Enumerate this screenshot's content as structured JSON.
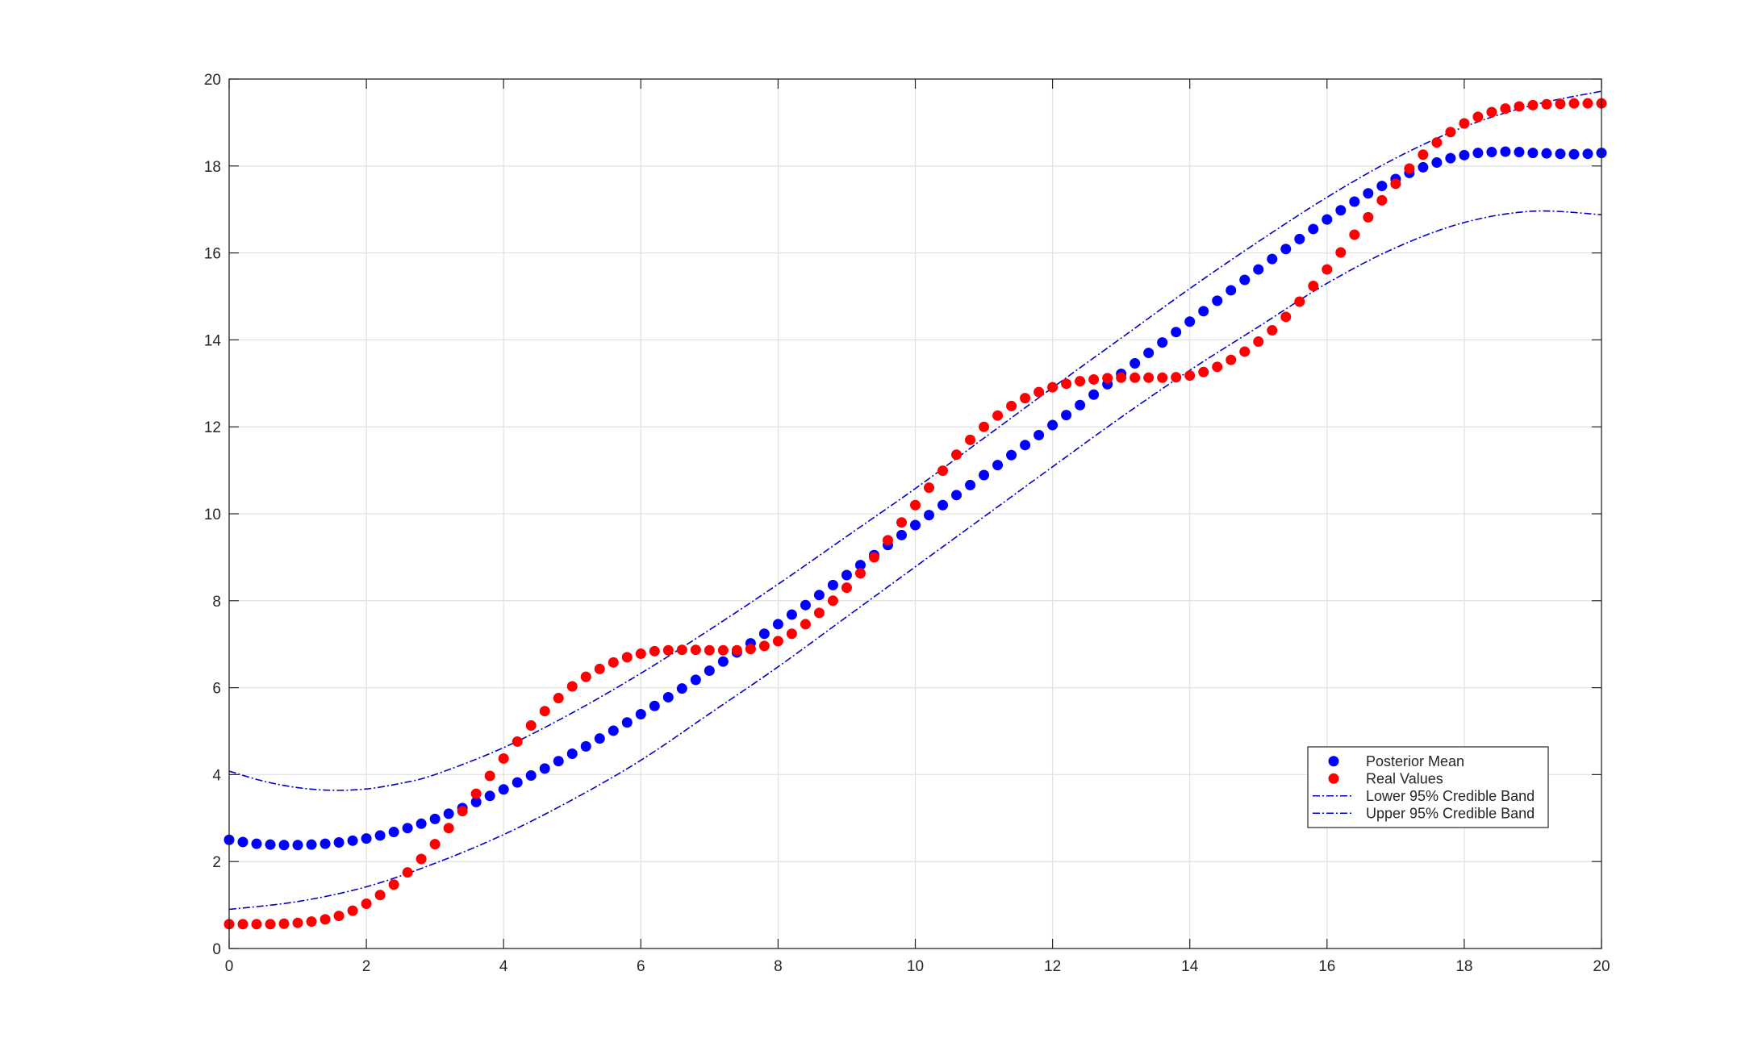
{
  "chart_data": {
    "type": "scatter",
    "title": "",
    "xlabel": "",
    "ylabel": "",
    "xlim": [
      0,
      20
    ],
    "ylim": [
      0,
      20
    ],
    "xticks": [
      0,
      2,
      4,
      6,
      8,
      10,
      12,
      14,
      16,
      18,
      20
    ],
    "yticks": [
      0,
      2,
      4,
      6,
      8,
      10,
      12,
      14,
      16,
      18,
      20
    ],
    "grid": true,
    "legend_position": "lower-right",
    "series": [
      {
        "name": "Posterior Mean",
        "kind": "markers",
        "color": "#0000ff",
        "x": [
          0,
          0.2,
          0.4,
          0.6,
          0.8,
          1.0,
          1.2,
          1.4,
          1.6,
          1.8,
          2.0,
          2.2,
          2.4,
          2.6,
          2.8,
          3.0,
          3.2,
          3.4,
          3.6,
          3.8,
          4.0,
          4.2,
          4.4,
          4.6,
          4.8,
          5.0,
          5.2,
          5.4,
          5.6,
          5.8,
          6.0,
          6.2,
          6.4,
          6.6,
          6.8,
          7.0,
          7.2,
          7.4,
          7.6,
          7.8,
          8.0,
          8.2,
          8.4,
          8.6,
          8.8,
          9.0,
          9.2,
          9.4,
          9.6,
          9.8,
          10.0,
          10.2,
          10.4,
          10.6,
          10.8,
          11.0,
          11.2,
          11.4,
          11.6,
          11.8,
          12.0,
          12.2,
          12.4,
          12.6,
          12.8,
          13.0,
          13.2,
          13.4,
          13.6,
          13.8,
          14.0,
          14.2,
          14.4,
          14.6,
          14.8,
          15.0,
          15.2,
          15.4,
          15.6,
          15.8,
          16.0,
          16.2,
          16.4,
          16.6,
          16.8,
          17.0,
          17.2,
          17.4,
          17.6,
          17.8,
          18.0,
          18.2,
          18.4,
          18.6,
          18.8,
          19.0,
          19.2,
          19.4,
          19.6,
          19.8,
          20.0
        ],
        "y": [
          2.5,
          2.45,
          2.41,
          2.39,
          2.38,
          2.38,
          2.39,
          2.41,
          2.44,
          2.48,
          2.53,
          2.6,
          2.68,
          2.77,
          2.87,
          2.98,
          3.1,
          3.23,
          3.37,
          3.51,
          3.66,
          3.82,
          3.98,
          4.14,
          4.31,
          4.48,
          4.65,
          4.83,
          5.01,
          5.2,
          5.39,
          5.58,
          5.78,
          5.98,
          6.18,
          6.39,
          6.6,
          6.81,
          7.02,
          7.24,
          7.46,
          7.68,
          7.9,
          8.13,
          8.36,
          8.59,
          8.82,
          9.05,
          9.28,
          9.51,
          9.74,
          9.97,
          10.2,
          10.43,
          10.66,
          10.89,
          11.12,
          11.35,
          11.58,
          11.81,
          12.04,
          12.27,
          12.5,
          12.74,
          12.98,
          13.22,
          13.46,
          13.7,
          13.94,
          14.18,
          14.42,
          14.66,
          14.9,
          15.14,
          15.38,
          15.62,
          15.86,
          16.09,
          16.32,
          16.55,
          16.77,
          16.98,
          17.18,
          17.37,
          17.54,
          17.7,
          17.84,
          17.97,
          18.08,
          18.18,
          18.25,
          18.3,
          18.32,
          18.33,
          18.32,
          18.3,
          18.29,
          18.28,
          18.27,
          18.28,
          18.3
        ]
      },
      {
        "name": "Real Values",
        "kind": "markers",
        "color": "#ff0000",
        "x": [
          0,
          0.2,
          0.4,
          0.6,
          0.8,
          1.0,
          1.2,
          1.4,
          1.6,
          1.8,
          2.0,
          2.2,
          2.4,
          2.6,
          2.8,
          3.0,
          3.2,
          3.4,
          3.6,
          3.8,
          4.0,
          4.2,
          4.4,
          4.6,
          4.8,
          5.0,
          5.2,
          5.4,
          5.6,
          5.8,
          6.0,
          6.2,
          6.4,
          6.6,
          6.8,
          7.0,
          7.2,
          7.4,
          7.6,
          7.8,
          8.0,
          8.2,
          8.4,
          8.6,
          8.8,
          9.0,
          9.2,
          9.4,
          9.6,
          9.8,
          10.0,
          10.2,
          10.4,
          10.6,
          10.8,
          11.0,
          11.2,
          11.4,
          11.6,
          11.8,
          12.0,
          12.2,
          12.4,
          12.6,
          12.8,
          13.0,
          13.2,
          13.4,
          13.6,
          13.8,
          14.0,
          14.2,
          14.4,
          14.6,
          14.8,
          15.0,
          15.2,
          15.4,
          15.6,
          15.8,
          16.0,
          16.2,
          16.4,
          16.6,
          16.8,
          17.0,
          17.2,
          17.4,
          17.6,
          17.8,
          18.0,
          18.2,
          18.4,
          18.6,
          18.8,
          19.0,
          19.2,
          19.4,
          19.6,
          19.8,
          20.0
        ],
        "y": [
          0.56,
          0.56,
          0.56,
          0.56,
          0.57,
          0.59,
          0.62,
          0.67,
          0.75,
          0.87,
          1.03,
          1.23,
          1.47,
          1.75,
          2.06,
          2.4,
          2.77,
          3.16,
          3.56,
          3.97,
          4.37,
          4.76,
          5.13,
          5.46,
          5.76,
          6.03,
          6.25,
          6.43,
          6.58,
          6.7,
          6.78,
          6.84,
          6.86,
          6.87,
          6.87,
          6.86,
          6.86,
          6.86,
          6.89,
          6.96,
          7.07,
          7.24,
          7.46,
          7.72,
          8.0,
          8.3,
          8.63,
          9.0,
          9.39,
          9.8,
          10.2,
          10.6,
          10.99,
          11.36,
          11.7,
          12.0,
          12.26,
          12.48,
          12.66,
          12.8,
          12.91,
          12.99,
          13.05,
          13.09,
          13.12,
          13.13,
          13.13,
          13.13,
          13.13,
          13.14,
          13.18,
          13.26,
          13.38,
          13.54,
          13.73,
          13.96,
          14.22,
          14.53,
          14.88,
          15.24,
          15.62,
          16.01,
          16.42,
          16.82,
          17.21,
          17.59,
          17.94,
          18.26,
          18.54,
          18.78,
          18.98,
          19.13,
          19.24,
          19.32,
          19.37,
          19.4,
          19.42,
          19.43,
          19.44,
          19.44,
          19.44
        ]
      },
      {
        "name": "Lower 95% Credible Band",
        "kind": "dash-dot",
        "color": "#0000cc",
        "x": [
          0,
          1,
          2,
          3,
          4,
          5,
          6,
          7,
          8,
          9,
          10,
          11,
          12,
          13,
          14,
          15,
          16,
          17,
          18,
          19,
          20
        ],
        "y": [
          0.9,
          1.08,
          1.42,
          1.96,
          2.62,
          3.42,
          4.33,
          5.4,
          6.48,
          7.63,
          8.78,
          9.93,
          11.08,
          12.22,
          13.3,
          14.3,
          15.3,
          16.12,
          16.7,
          16.96,
          16.88
        ]
      },
      {
        "name": "Upper 95% Credible Band",
        "kind": "dash-dot",
        "color": "#0000cc",
        "x": [
          0,
          0.5,
          1,
          1.5,
          2,
          2.5,
          3,
          4,
          5,
          6,
          7,
          8,
          9,
          10,
          11,
          12,
          13,
          14,
          15,
          16,
          17,
          18,
          19,
          20
        ],
        "y": [
          4.08,
          3.85,
          3.7,
          3.64,
          3.67,
          3.8,
          4.0,
          4.62,
          5.42,
          6.33,
          7.33,
          8.38,
          9.48,
          10.58,
          11.74,
          12.9,
          14.04,
          15.18,
          16.26,
          17.28,
          18.18,
          18.9,
          19.4,
          19.72
        ]
      }
    ]
  }
}
